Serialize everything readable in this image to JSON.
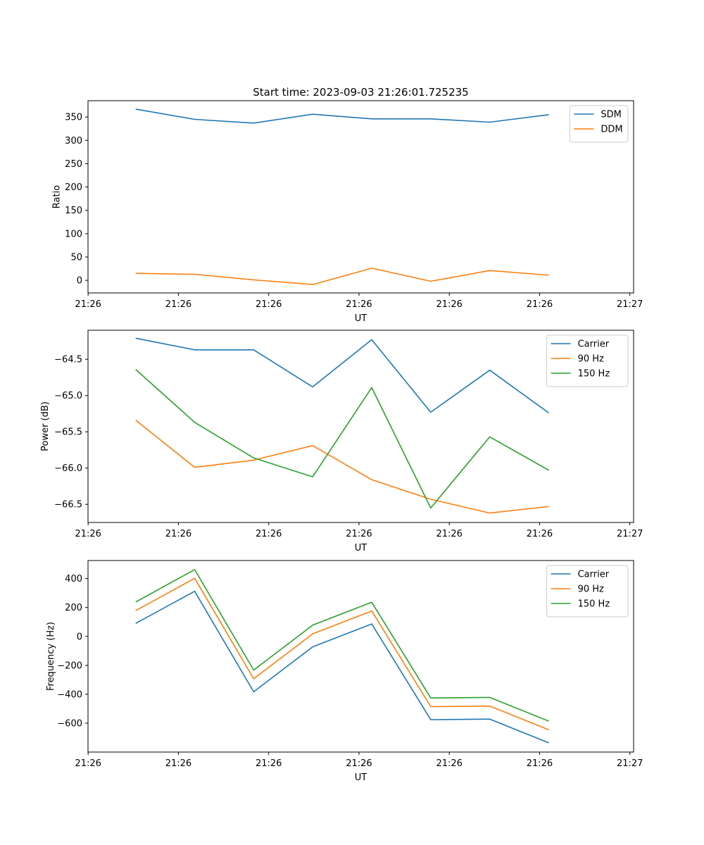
{
  "figure_title": "Start time: 2023-09-03 21:26:01.725235",
  "colors": {
    "c0": "#1f77b4",
    "c1": "#ff7f0e",
    "c2": "#2ca02c"
  },
  "chart_data": [
    {
      "type": "line",
      "title": "Start time: 2023-09-03 21:26:01.725235",
      "xlabel": "UT",
      "ylabel": "Ratio",
      "x": [
        1,
        2,
        3,
        4,
        5,
        6,
        7,
        8
      ],
      "xlim": [
        0.193,
        9.438
      ],
      "ylim": [
        -27,
        385
      ],
      "xticks": [
        0.195,
        1.725,
        3.255,
        4.785,
        6.315,
        7.845,
        9.375
      ],
      "xtick_labels": [
        "21:26",
        "21:26",
        "21:26",
        "21:26",
        "21:26",
        "21:26",
        "21:27"
      ],
      "yticks": [
        0,
        50,
        100,
        150,
        200,
        250,
        300,
        350
      ],
      "ytick_labels": [
        "0",
        "50",
        "100",
        "150",
        "200",
        "250",
        "300",
        "350"
      ],
      "legend_position": "top-right",
      "series": [
        {
          "name": "SDM",
          "color": "#1f77b4",
          "values": [
            367,
            345,
            337,
            356,
            346,
            346,
            339,
            355
          ]
        },
        {
          "name": "DDM",
          "color": "#ff7f0e",
          "values": [
            15,
            13,
            1,
            -9,
            26,
            -2,
            21,
            11
          ]
        }
      ]
    },
    {
      "type": "line",
      "title": "",
      "xlabel": "UT",
      "ylabel": "Power (dB)",
      "x": [
        1,
        2,
        3,
        4,
        5,
        6,
        7,
        8
      ],
      "xlim": [
        0.193,
        9.438
      ],
      "ylim": [
        -66.75,
        -64.1
      ],
      "xticks": [
        0.195,
        1.725,
        3.255,
        4.785,
        6.315,
        7.845,
        9.375
      ],
      "xtick_labels": [
        "21:26",
        "21:26",
        "21:26",
        "21:26",
        "21:26",
        "21:26",
        "21:27"
      ],
      "yticks": [
        -66.5,
        -66.0,
        -65.5,
        -65.0,
        -64.5
      ],
      "ytick_labels": [
        "−66.5",
        "−66.0",
        "−65.5",
        "−65.0",
        "−64.5"
      ],
      "legend_position": "top-right",
      "series": [
        {
          "name": "Carrier",
          "color": "#1f77b4",
          "values": [
            -64.21,
            -64.37,
            -64.37,
            -64.88,
            -64.23,
            -65.23,
            -64.65,
            -65.24
          ]
        },
        {
          "name": "90 Hz",
          "color": "#ff7f0e",
          "values": [
            -65.34,
            -65.99,
            -65.89,
            -65.69,
            -66.16,
            -66.43,
            -66.62,
            -66.53
          ]
        },
        {
          "name": "150 Hz",
          "color": "#2ca02c",
          "values": [
            -64.64,
            -65.37,
            -65.86,
            -66.12,
            -64.89,
            -66.55,
            -65.57,
            -66.03
          ]
        }
      ]
    },
    {
      "type": "line",
      "title": "",
      "xlabel": "UT",
      "ylabel": "Frequency (Hz)",
      "x": [
        1,
        2,
        3,
        4,
        5,
        6,
        7,
        8
      ],
      "xlim": [
        0.193,
        9.438
      ],
      "ylim": [
        -800,
        525
      ],
      "xticks": [
        0.195,
        1.725,
        3.255,
        4.785,
        6.315,
        7.845,
        9.375
      ],
      "xtick_labels": [
        "21:26",
        "21:26",
        "21:26",
        "21:26",
        "21:26",
        "21:26",
        "21:27"
      ],
      "yticks": [
        -600,
        -400,
        -200,
        0,
        200,
        400
      ],
      "ytick_labels": [
        "−600",
        "−400",
        "−200",
        "0",
        "200",
        "400"
      ],
      "legend_position": "top-right",
      "series": [
        {
          "name": "Carrier",
          "color": "#1f77b4",
          "values": [
            90,
            312,
            -383,
            -72,
            86,
            -576,
            -572,
            -736
          ]
        },
        {
          "name": "90 Hz",
          "color": "#ff7f0e",
          "values": [
            178,
            402,
            -293,
            18,
            176,
            -486,
            -482,
            -646
          ]
        },
        {
          "name": "150 Hz",
          "color": "#2ca02c",
          "values": [
            238,
            462,
            -233,
            78,
            236,
            -426,
            -422,
            -586
          ]
        }
      ]
    }
  ]
}
